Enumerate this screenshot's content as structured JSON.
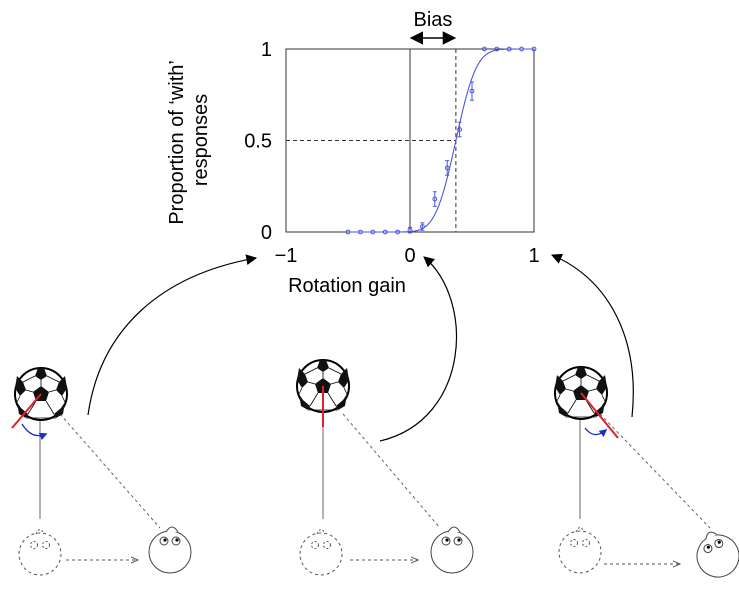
{
  "chart_data": {
    "type": "scatter",
    "xlabel": "Rotation gain",
    "ylabel": "Proportion of ‘with’\nresponses",
    "xlim": [
      -1,
      1
    ],
    "ylim": [
      0,
      1
    ],
    "xticks": [
      -1,
      0,
      1
    ],
    "xtick_labels": [
      "−1",
      "0",
      "1"
    ],
    "yticks": [
      0,
      0.5,
      1
    ],
    "ytick_labels": [
      "0",
      "0.5",
      "1"
    ],
    "grid": false,
    "annotation": {
      "label": "Bias",
      "from": 0,
      "to": 0.37
    },
    "reference_lines": {
      "y": 0.5,
      "x": 0.37
    },
    "colors": {
      "data": "#4c55e0",
      "stimulus": "#e0202a",
      "rotation": "#1a2fcc"
    },
    "points": [
      {
        "x": -0.5,
        "y": 0.0
      },
      {
        "x": -0.4,
        "y": 0.0
      },
      {
        "x": -0.3,
        "y": 0.0
      },
      {
        "x": -0.2,
        "y": 0.0
      },
      {
        "x": -0.1,
        "y": 0.0
      },
      {
        "x": 0.0,
        "y": 0.01,
        "err": 0.015
      },
      {
        "x": 0.1,
        "y": 0.03,
        "err": 0.02
      },
      {
        "x": 0.2,
        "y": 0.18,
        "err": 0.04
      },
      {
        "x": 0.3,
        "y": 0.35,
        "err": 0.04
      },
      {
        "x": 0.4,
        "y": 0.56,
        "err": 0.04
      },
      {
        "x": 0.5,
        "y": 0.77,
        "err": 0.05
      },
      {
        "x": 0.6,
        "y": 1.0
      },
      {
        "x": 0.7,
        "y": 1.0
      },
      {
        "x": 0.8,
        "y": 1.0
      },
      {
        "x": 0.9,
        "y": 1.0
      },
      {
        "x": 1.0,
        "y": 1.0
      }
    ],
    "fit": {
      "type": "cumulative-gaussian",
      "mu": 0.37,
      "sigma": 0.13
    }
  }
}
